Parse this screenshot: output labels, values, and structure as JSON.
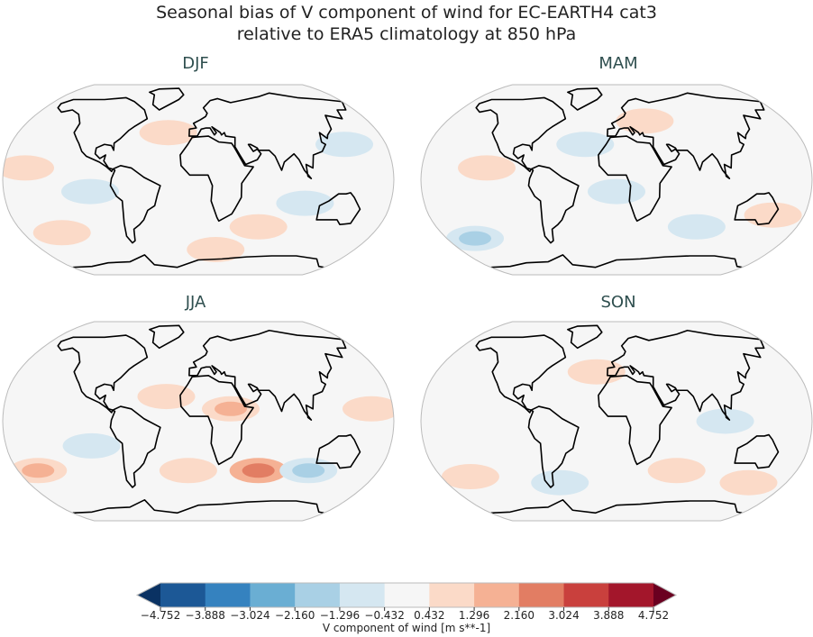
{
  "title_line1": "Seasonal bias of V component of wind for EC-EARTH4 cat3",
  "title_line2": "relative to ERA5 climatology at 850 hPa",
  "panels": [
    {
      "label": "DJF",
      "patches": [
        [
          -140,
          -45,
          1.2
        ],
        [
          -100,
          -10,
          -0.8
        ],
        [
          -30,
          40,
          0.9
        ],
        [
          60,
          -40,
          1.0
        ],
        [
          140,
          30,
          -0.7
        ],
        [
          -160,
          10,
          0.6
        ],
        [
          20,
          -60,
          0.8
        ],
        [
          100,
          -20,
          -0.6
        ]
      ]
    },
    {
      "label": "MAM",
      "patches": [
        [
          -150,
          -50,
          -1.5
        ],
        [
          -30,
          30,
          -0.6
        ],
        [
          30,
          50,
          0.8
        ],
        [
          150,
          -30,
          0.9
        ],
        [
          -120,
          10,
          0.6
        ],
        [
          80,
          -40,
          -0.6
        ],
        [
          0,
          -10,
          -0.6
        ]
      ]
    },
    {
      "label": "JJA",
      "patches": [
        [
          -160,
          -40,
          1.8
        ],
        [
          60,
          -40,
          2.6
        ],
        [
          110,
          -40,
          -1.6
        ],
        [
          -10,
          -40,
          1.0
        ],
        [
          -30,
          20,
          1.2
        ],
        [
          -100,
          -20,
          -0.8
        ],
        [
          160,
          10,
          0.7
        ],
        [
          30,
          10,
          1.3
        ]
      ]
    },
    {
      "label": "SON",
      "patches": [
        [
          -150,
          -45,
          0.8
        ],
        [
          -60,
          -50,
          -0.7
        ],
        [
          60,
          -40,
          0.6
        ],
        [
          140,
          -50,
          1.0
        ],
        [
          -20,
          40,
          1.0
        ],
        [
          100,
          0,
          -0.6
        ]
      ]
    }
  ],
  "colorbar": {
    "label": "V component of wind [m s**-1]",
    "ticks": [
      "−4.752",
      "−3.888",
      "−3.024",
      "−2.160",
      "−1.296",
      "−0.432",
      "0.432",
      "1.296",
      "2.160",
      "3.024",
      "3.888",
      "4.752"
    ],
    "colors": [
      "#1c5896",
      "#3582bf",
      "#6aaed3",
      "#a9d0e5",
      "#d5e7f1",
      "#f6f6f6",
      "#fbdac8",
      "#f5b194",
      "#e27d63",
      "#c9403d",
      "#a3162b"
    ],
    "extend_low": "#0a3263",
    "extend_high": "#6a0020"
  }
}
